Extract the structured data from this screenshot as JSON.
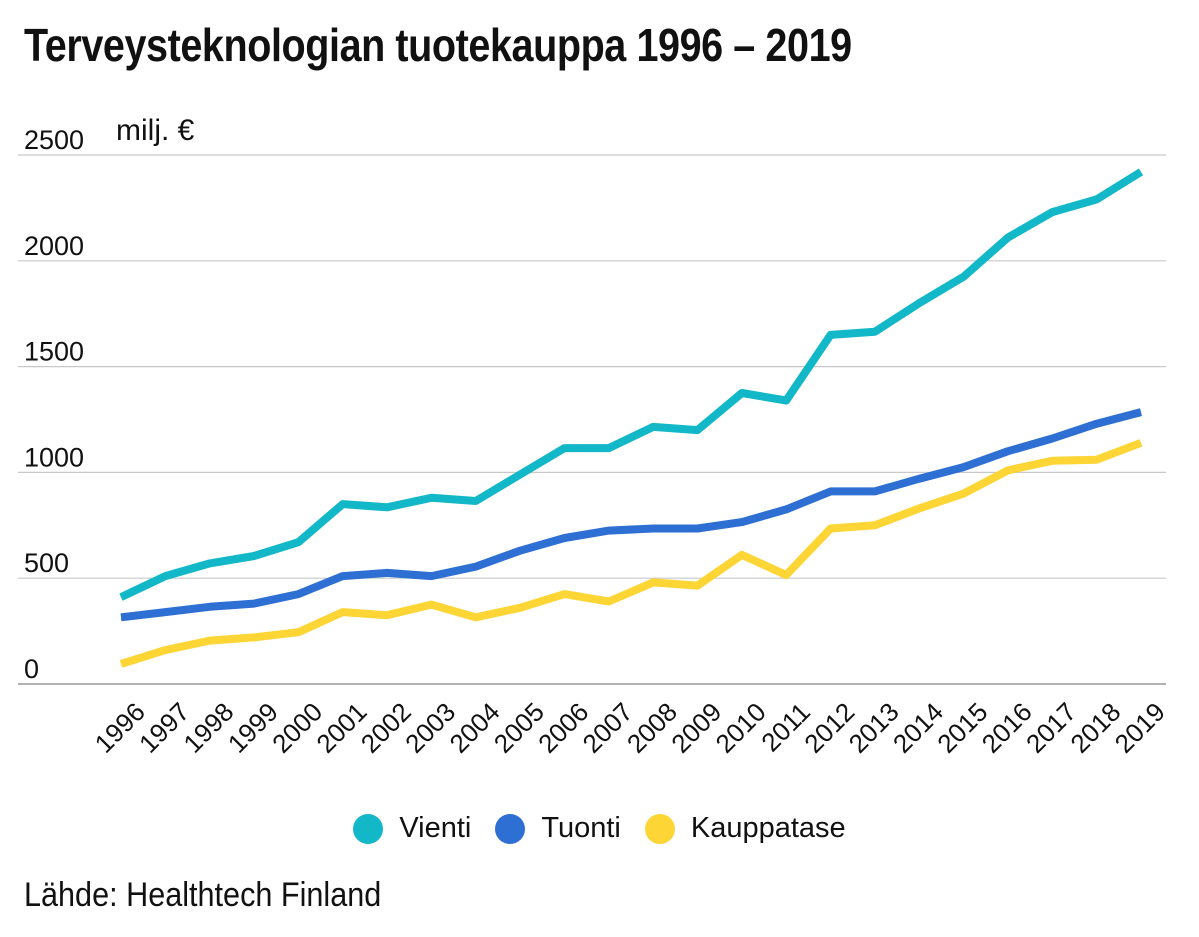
{
  "title": "Terveysteknologian tuotekauppa 1996 – 2019",
  "unit_label": "milj. €",
  "source": "Lähde: Healthtech Finland",
  "chart_data": {
    "type": "line",
    "x": [
      "1996",
      "1997",
      "1998",
      "1999",
      "2000",
      "2001",
      "2002",
      "2003",
      "2004",
      "2005",
      "2006",
      "2007",
      "2008",
      "2009",
      "2010",
      "2011",
      "2012",
      "2013",
      "2014",
      "2015",
      "2016",
      "2017",
      "2018",
      "2019"
    ],
    "yticks": [
      0,
      500,
      1000,
      1500,
      2000,
      2500
    ],
    "ylim": [
      0,
      2500
    ],
    "grid": true,
    "legend_position": "bottom",
    "series": [
      {
        "name": "Vienti",
        "color": "#12b8c8",
        "values": [
          410,
          510,
          570,
          605,
          670,
          850,
          835,
          880,
          865,
          990,
          1115,
          1115,
          1215,
          1200,
          1375,
          1340,
          1650,
          1665,
          1800,
          1925,
          2110,
          2230,
          2290,
          2420
        ]
      },
      {
        "name": "Tuonti",
        "color": "#2e6fd4",
        "values": [
          315,
          340,
          365,
          380,
          425,
          510,
          525,
          510,
          555,
          630,
          690,
          725,
          735,
          735,
          765,
          825,
          910,
          910,
          970,
          1025,
          1100,
          1160,
          1230,
          1285
        ]
      },
      {
        "name": "Kauppatase",
        "color": "#fdd535",
        "values": [
          95,
          160,
          205,
          220,
          245,
          340,
          325,
          375,
          315,
          360,
          425,
          390,
          480,
          465,
          610,
          515,
          735,
          750,
          830,
          900,
          1010,
          1055,
          1060,
          1140
        ]
      }
    ]
  }
}
